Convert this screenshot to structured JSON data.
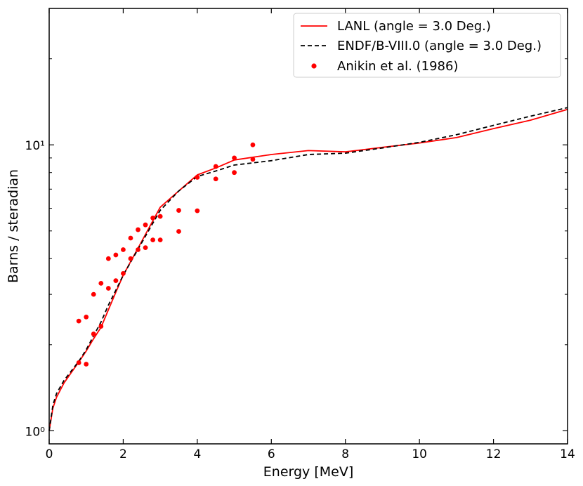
{
  "chart_data": {
    "type": "line",
    "title": "",
    "xlabel": "Energy [MeV]",
    "ylabel": "Barns / steradian",
    "xlim": [
      0,
      14
    ],
    "ylim": [
      0.9,
      30
    ],
    "yscale": "log",
    "xticks": [
      0,
      2,
      4,
      6,
      8,
      10,
      12,
      14
    ],
    "xtick_labels": [
      "0",
      "2",
      "4",
      "6",
      "8",
      "10",
      "12",
      "14"
    ],
    "ytick_major": [
      1,
      10
    ],
    "ytick_labels": [
      "10⁰",
      "10¹"
    ],
    "legend_position": "top-right",
    "series": [
      {
        "name": "LANL (angle = 3.0 Deg.)",
        "style": "solid",
        "color": "#ff0000",
        "x": [
          0.0,
          0.1,
          0.2,
          0.4,
          0.6,
          0.8,
          1.0,
          1.2,
          1.4,
          1.6,
          1.8,
          2.0,
          2.5,
          3.0,
          3.5,
          4.0,
          4.5,
          5.0,
          6.0,
          7.0,
          8.0,
          9.0,
          10.0,
          11.0,
          12.0,
          13.0,
          14.0
        ],
        "y": [
          1.0,
          1.2,
          1.31,
          1.47,
          1.6,
          1.74,
          1.9,
          2.1,
          2.3,
          2.65,
          3.05,
          3.5,
          4.6,
          6.05,
          6.9,
          7.85,
          8.3,
          8.85,
          9.25,
          9.55,
          9.45,
          9.8,
          10.15,
          10.6,
          11.4,
          12.2,
          13.3
        ]
      },
      {
        "name": "ENDF/B-VIII.0 (angle = 3.0 Deg.)",
        "style": "dashed",
        "color": "#000000",
        "x": [
          0.0,
          0.1,
          0.2,
          0.4,
          0.6,
          0.8,
          1.0,
          1.2,
          1.4,
          1.6,
          1.8,
          2.0,
          2.5,
          3.0,
          3.5,
          4.0,
          4.5,
          5.0,
          6.0,
          7.0,
          8.0,
          9.0,
          10.0,
          11.0,
          12.0,
          13.0,
          14.0
        ],
        "y": [
          1.0,
          1.23,
          1.35,
          1.5,
          1.62,
          1.75,
          1.92,
          2.15,
          2.4,
          2.75,
          3.1,
          3.5,
          4.55,
          5.9,
          6.9,
          7.75,
          8.1,
          8.5,
          8.8,
          9.25,
          9.35,
          9.75,
          10.2,
          10.85,
          11.7,
          12.6,
          13.5
        ]
      },
      {
        "name": "Anikin et al. (1986)",
        "style": "points",
        "color": "#ff0000",
        "x": [
          0.8,
          0.8,
          1.0,
          1.0,
          1.2,
          1.2,
          1.4,
          1.4,
          1.6,
          1.6,
          1.8,
          1.8,
          2.0,
          2.0,
          2.2,
          2.2,
          2.4,
          2.4,
          2.6,
          2.6,
          2.8,
          2.8,
          3.0,
          3.0,
          3.5,
          3.5,
          4.0,
          4.0,
          4.5,
          4.5,
          5.0,
          5.0,
          5.5,
          5.5
        ],
        "y": [
          1.73,
          2.42,
          1.71,
          2.5,
          2.18,
          3.0,
          2.32,
          3.28,
          3.15,
          4.0,
          3.35,
          4.12,
          3.55,
          4.3,
          4.0,
          4.72,
          4.3,
          5.05,
          4.37,
          5.25,
          4.65,
          5.55,
          4.65,
          5.62,
          4.98,
          5.9,
          5.88,
          7.7,
          7.6,
          8.4,
          8.0,
          9.0,
          8.9,
          10.0
        ]
      }
    ]
  }
}
